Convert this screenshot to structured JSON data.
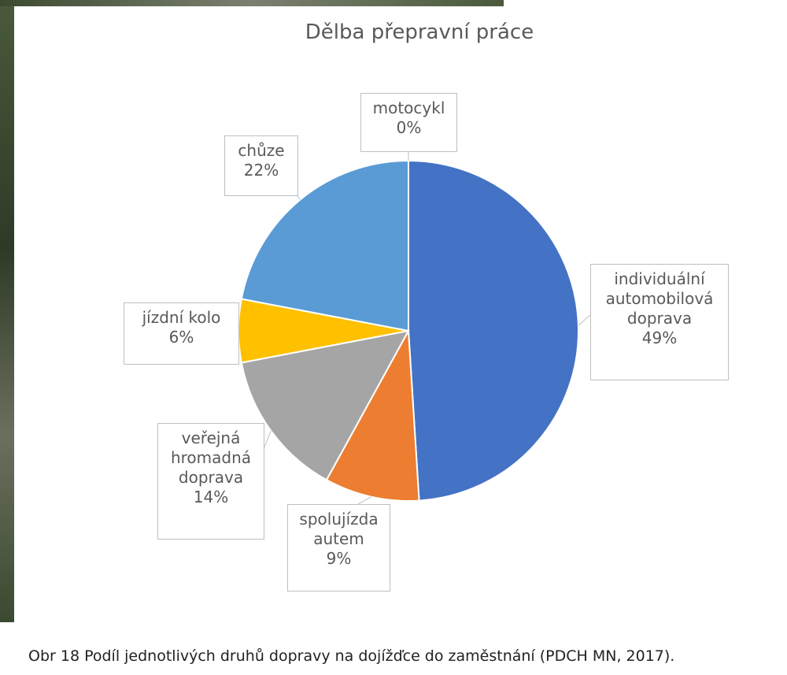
{
  "chart_data": {
    "type": "pie",
    "title": "Dělba přepravní práce",
    "categories": [
      "individuální automobilová doprava",
      "spolujízda autem",
      "veřejná hromadná doprava",
      "jízdní kolo",
      "chůze",
      "motocykl"
    ],
    "values": [
      49,
      9,
      14,
      6,
      22,
      0
    ],
    "value_labels": [
      "49%",
      "9%",
      "14%",
      "6%",
      "22%",
      "0%"
    ],
    "colors": [
      "#4472c4",
      "#ed7d31",
      "#a5a5a5",
      "#ffc000",
      "#5b9bd5",
      "#264478"
    ]
  },
  "caption": "Obr 18 Podíl jednotlivých druhů dopravy na dojížďce do zaměstnání (PDCH MN, 2017)."
}
